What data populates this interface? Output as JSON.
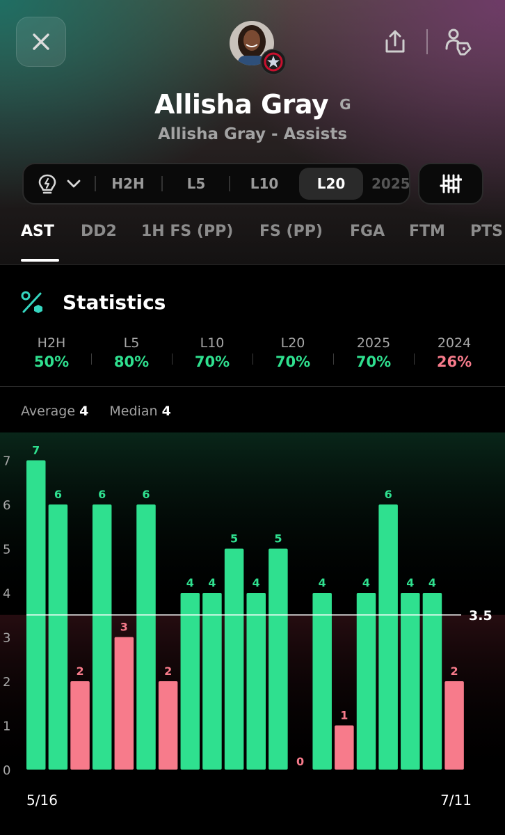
{
  "header": {
    "player_name": "Allisha Gray",
    "position": "G",
    "subtitle": "Allisha Gray - Assists"
  },
  "icons": {
    "close": "close-icon",
    "share": "share-icon",
    "person": "person-tag-icon",
    "bulb": "lightbulb-icon",
    "adjust": "sliders-icon",
    "stats": "percent-icon"
  },
  "filters": {
    "items": [
      "H2H",
      "L5",
      "L10",
      "L20",
      "2025"
    ],
    "selected": "L20"
  },
  "tabs": [
    "AST",
    "DD2",
    "1H FS (PP)",
    "FS (PP)",
    "FGA",
    "FTM",
    "PTS"
  ],
  "active_tab": "AST",
  "statistics": {
    "title": "Statistics",
    "items": [
      {
        "label": "H2H",
        "value": "50%",
        "status": "over"
      },
      {
        "label": "L5",
        "value": "80%",
        "status": "over"
      },
      {
        "label": "L10",
        "value": "70%",
        "status": "over"
      },
      {
        "label": "L20",
        "value": "70%",
        "status": "over"
      },
      {
        "label": "2025",
        "value": "70%",
        "status": "over"
      },
      {
        "label": "2024",
        "value": "26%",
        "status": "under"
      }
    ]
  },
  "summary": {
    "average_label": "Average",
    "average_value": "4",
    "median_label": "Median",
    "median_value": "4"
  },
  "colors": {
    "over": "#2fe08f",
    "under": "#f77b8b",
    "background": "#000000"
  },
  "chart_data": {
    "type": "bar",
    "values": [
      7,
      6,
      2,
      6,
      3,
      6,
      2,
      4,
      4,
      5,
      4,
      5,
      0,
      4,
      1,
      4,
      6,
      4,
      4,
      2
    ],
    "threshold": 3.5,
    "threshold_label": "3.5",
    "yticks": [
      0,
      1,
      2,
      3,
      4,
      5,
      6,
      7
    ],
    "ylim": [
      0,
      7
    ],
    "x_start_label": "5/16",
    "x_end_label": "7/11",
    "grid": false
  }
}
